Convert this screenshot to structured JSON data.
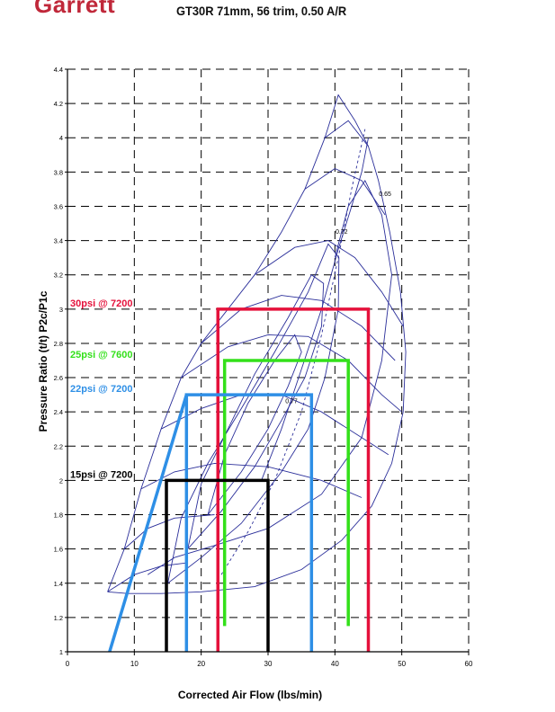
{
  "header": {
    "brand": "Garrett",
    "title": "GT30R 71mm, 56 trim, 0.50 A/R"
  },
  "colors": {
    "map": "#2b2f9a",
    "grid": "#000000",
    "boost_30": "#e5113b",
    "boost_25": "#33e01a",
    "boost_22": "#2e8fe6",
    "boost_15": "#000000"
  },
  "chart_data": {
    "type": "line",
    "title": "GT30R 71mm, 56 trim, 0.50 A/R",
    "xlabel": "Corrected Air Flow (lbs/min)",
    "ylabel": "Pressure Ratio  (t/t)  P2c/P1c",
    "xlim": [
      0,
      60
    ],
    "ylim": [
      1,
      4.4
    ],
    "xticks": [
      0,
      10,
      20,
      30,
      40,
      50,
      60
    ],
    "yticks": [
      1,
      1.2,
      1.4,
      1.6,
      1.8,
      2,
      2.2,
      2.4,
      2.6,
      2.8,
      3,
      3.2,
      3.4,
      3.6,
      3.8,
      4,
      4.2,
      4.4
    ],
    "grid": true,
    "efficiency_labels": [
      {
        "text": "0.65",
        "x": 47.5,
        "y": 3.66
      },
      {
        "text": "0.72",
        "x": 41,
        "y": 3.44
      },
      {
        "text": "0.77",
        "x": 33.5,
        "y": 2.45
      }
    ],
    "series": [
      {
        "name": "30psi @ 7200",
        "key": "boost_30",
        "rect": {
          "x1": 22.5,
          "x2": 45,
          "y1": 1,
          "y2": 3.0
        }
      },
      {
        "name": "25psi @ 7600",
        "key": "boost_25",
        "rect": {
          "x1": 23.5,
          "x2": 42,
          "y1": 1.15,
          "y2": 2.7
        }
      },
      {
        "name": "22psi @ 7200",
        "key": "boost_22",
        "rect": {
          "x1": 17.8,
          "x2": 36.5,
          "y1": 1,
          "y2": 2.5
        }
      },
      {
        "name": "15psi @ 7200",
        "key": "boost_15",
        "rect": {
          "x1": 14.8,
          "x2": 30,
          "y1": 1,
          "y2": 2.0
        }
      }
    ],
    "spool_line": {
      "name": "spool",
      "key": "boost_22",
      "points": [
        [
          6.3,
          1.0
        ],
        [
          17.8,
          2.5
        ]
      ]
    },
    "map_outline": [
      [
        6.0,
        1.35
      ],
      [
        8.5,
        1.6
      ],
      [
        11,
        1.95
      ],
      [
        14,
        2.3
      ],
      [
        17,
        2.6
      ],
      [
        20,
        2.8
      ],
      [
        24,
        3.0
      ],
      [
        28,
        3.2
      ],
      [
        32,
        3.45
      ],
      [
        35.5,
        3.7
      ],
      [
        38.5,
        4.0
      ],
      [
        40.5,
        4.25
      ],
      [
        43,
        4.1
      ],
      [
        45,
        3.95
      ],
      [
        46.5,
        3.75
      ],
      [
        48.2,
        3.45
      ],
      [
        49.8,
        3.1
      ],
      [
        50.6,
        2.75
      ],
      [
        50.2,
        2.4
      ],
      [
        48.5,
        2.1
      ],
      [
        45.5,
        1.85
      ],
      [
        41,
        1.65
      ],
      [
        35,
        1.48
      ],
      [
        28,
        1.38
      ],
      [
        20,
        1.35
      ],
      [
        14,
        1.34
      ],
      [
        9,
        1.34
      ],
      [
        6.0,
        1.35
      ]
    ],
    "speed_lines": [
      [
        [
          6.0,
          1.35
        ],
        [
          10,
          1.45
        ],
        [
          14,
          1.5
        ],
        [
          18,
          1.52
        ]
      ],
      [
        [
          8.5,
          1.6
        ],
        [
          12,
          1.72
        ],
        [
          16,
          1.78
        ],
        [
          22,
          1.8
        ]
      ],
      [
        [
          11,
          1.95
        ],
        [
          16,
          2.05
        ],
        [
          22,
          2.1
        ],
        [
          30,
          2.08
        ],
        [
          38,
          2.0
        ],
        [
          44,
          1.9
        ]
      ],
      [
        [
          14,
          2.3
        ],
        [
          20,
          2.42
        ],
        [
          26,
          2.5
        ],
        [
          32,
          2.5
        ],
        [
          38,
          2.4
        ],
        [
          44,
          2.25
        ],
        [
          48,
          2.15
        ]
      ],
      [
        [
          17,
          2.6
        ],
        [
          24,
          2.78
        ],
        [
          30,
          2.85
        ],
        [
          36,
          2.84
        ],
        [
          42,
          2.7
        ],
        [
          47,
          2.5
        ],
        [
          50,
          2.4
        ]
      ],
      [
        [
          20,
          2.8
        ],
        [
          26,
          3.0
        ],
        [
          32,
          3.08
        ],
        [
          38,
          3.05
        ],
        [
          44,
          2.9
        ],
        [
          49,
          2.7
        ]
      ],
      [
        [
          28,
          3.2
        ],
        [
          34,
          3.36
        ],
        [
          39,
          3.4
        ],
        [
          43,
          3.3
        ],
        [
          47,
          3.1
        ],
        [
          50.2,
          2.9
        ]
      ],
      [
        [
          35.5,
          3.7
        ],
        [
          40,
          3.82
        ],
        [
          44,
          3.75
        ],
        [
          47.5,
          3.55
        ]
      ],
      [
        [
          38.5,
          4.0
        ],
        [
          42,
          4.1
        ],
        [
          45,
          3.95
        ]
      ]
    ],
    "efficiency_islands": [
      [
        [
          15,
          1.4
        ],
        [
          20,
          1.55
        ],
        [
          26,
          1.75
        ],
        [
          32,
          2.05
        ],
        [
          36,
          2.3
        ],
        [
          38.5,
          2.6
        ],
        [
          40.5,
          3.0
        ],
        [
          40.6,
          3.3
        ],
        [
          39,
          3.38
        ],
        [
          36,
          3.1
        ],
        [
          31,
          2.75
        ],
        [
          26,
          2.42
        ],
        [
          21,
          2.1
        ],
        [
          17,
          1.78
        ],
        [
          15,
          1.4
        ]
      ],
      [
        [
          18,
          1.6
        ],
        [
          23,
          1.82
        ],
        [
          28,
          2.08
        ],
        [
          32,
          2.35
        ],
        [
          35.5,
          2.6
        ],
        [
          38,
          2.9
        ],
        [
          38.3,
          3.15
        ],
        [
          36.5,
          3.2
        ],
        [
          33,
          2.95
        ],
        [
          28,
          2.62
        ],
        [
          24,
          2.3
        ],
        [
          20,
          1.98
        ],
        [
          18,
          1.6
        ]
      ],
      [
        [
          21,
          1.8
        ],
        [
          26,
          2.05
        ],
        [
          30,
          2.3
        ],
        [
          33,
          2.55
        ],
        [
          35,
          2.75
        ],
        [
          34,
          2.85
        ],
        [
          31,
          2.7
        ],
        [
          27,
          2.45
        ],
        [
          23.5,
          2.15
        ],
        [
          21,
          1.8
        ]
      ],
      [
        [
          12,
          1.45
        ],
        [
          16,
          1.55
        ],
        [
          22,
          1.62
        ],
        [
          30,
          1.72
        ],
        [
          38,
          1.92
        ],
        [
          44,
          2.25
        ],
        [
          47,
          2.7
        ],
        [
          48.5,
          3.2
        ],
        [
          47,
          3.55
        ],
        [
          44.5,
          3.75
        ],
        [
          42,
          3.6
        ],
        [
          40,
          3.3
        ]
      ],
      [
        [
          29,
          2.0
        ],
        [
          32,
          2.3
        ],
        [
          35,
          2.65
        ],
        [
          38,
          3.0
        ],
        [
          40.5,
          3.35
        ],
        [
          42.5,
          3.6
        ],
        [
          44,
          3.8
        ],
        [
          45,
          4.0
        ]
      ]
    ]
  }
}
